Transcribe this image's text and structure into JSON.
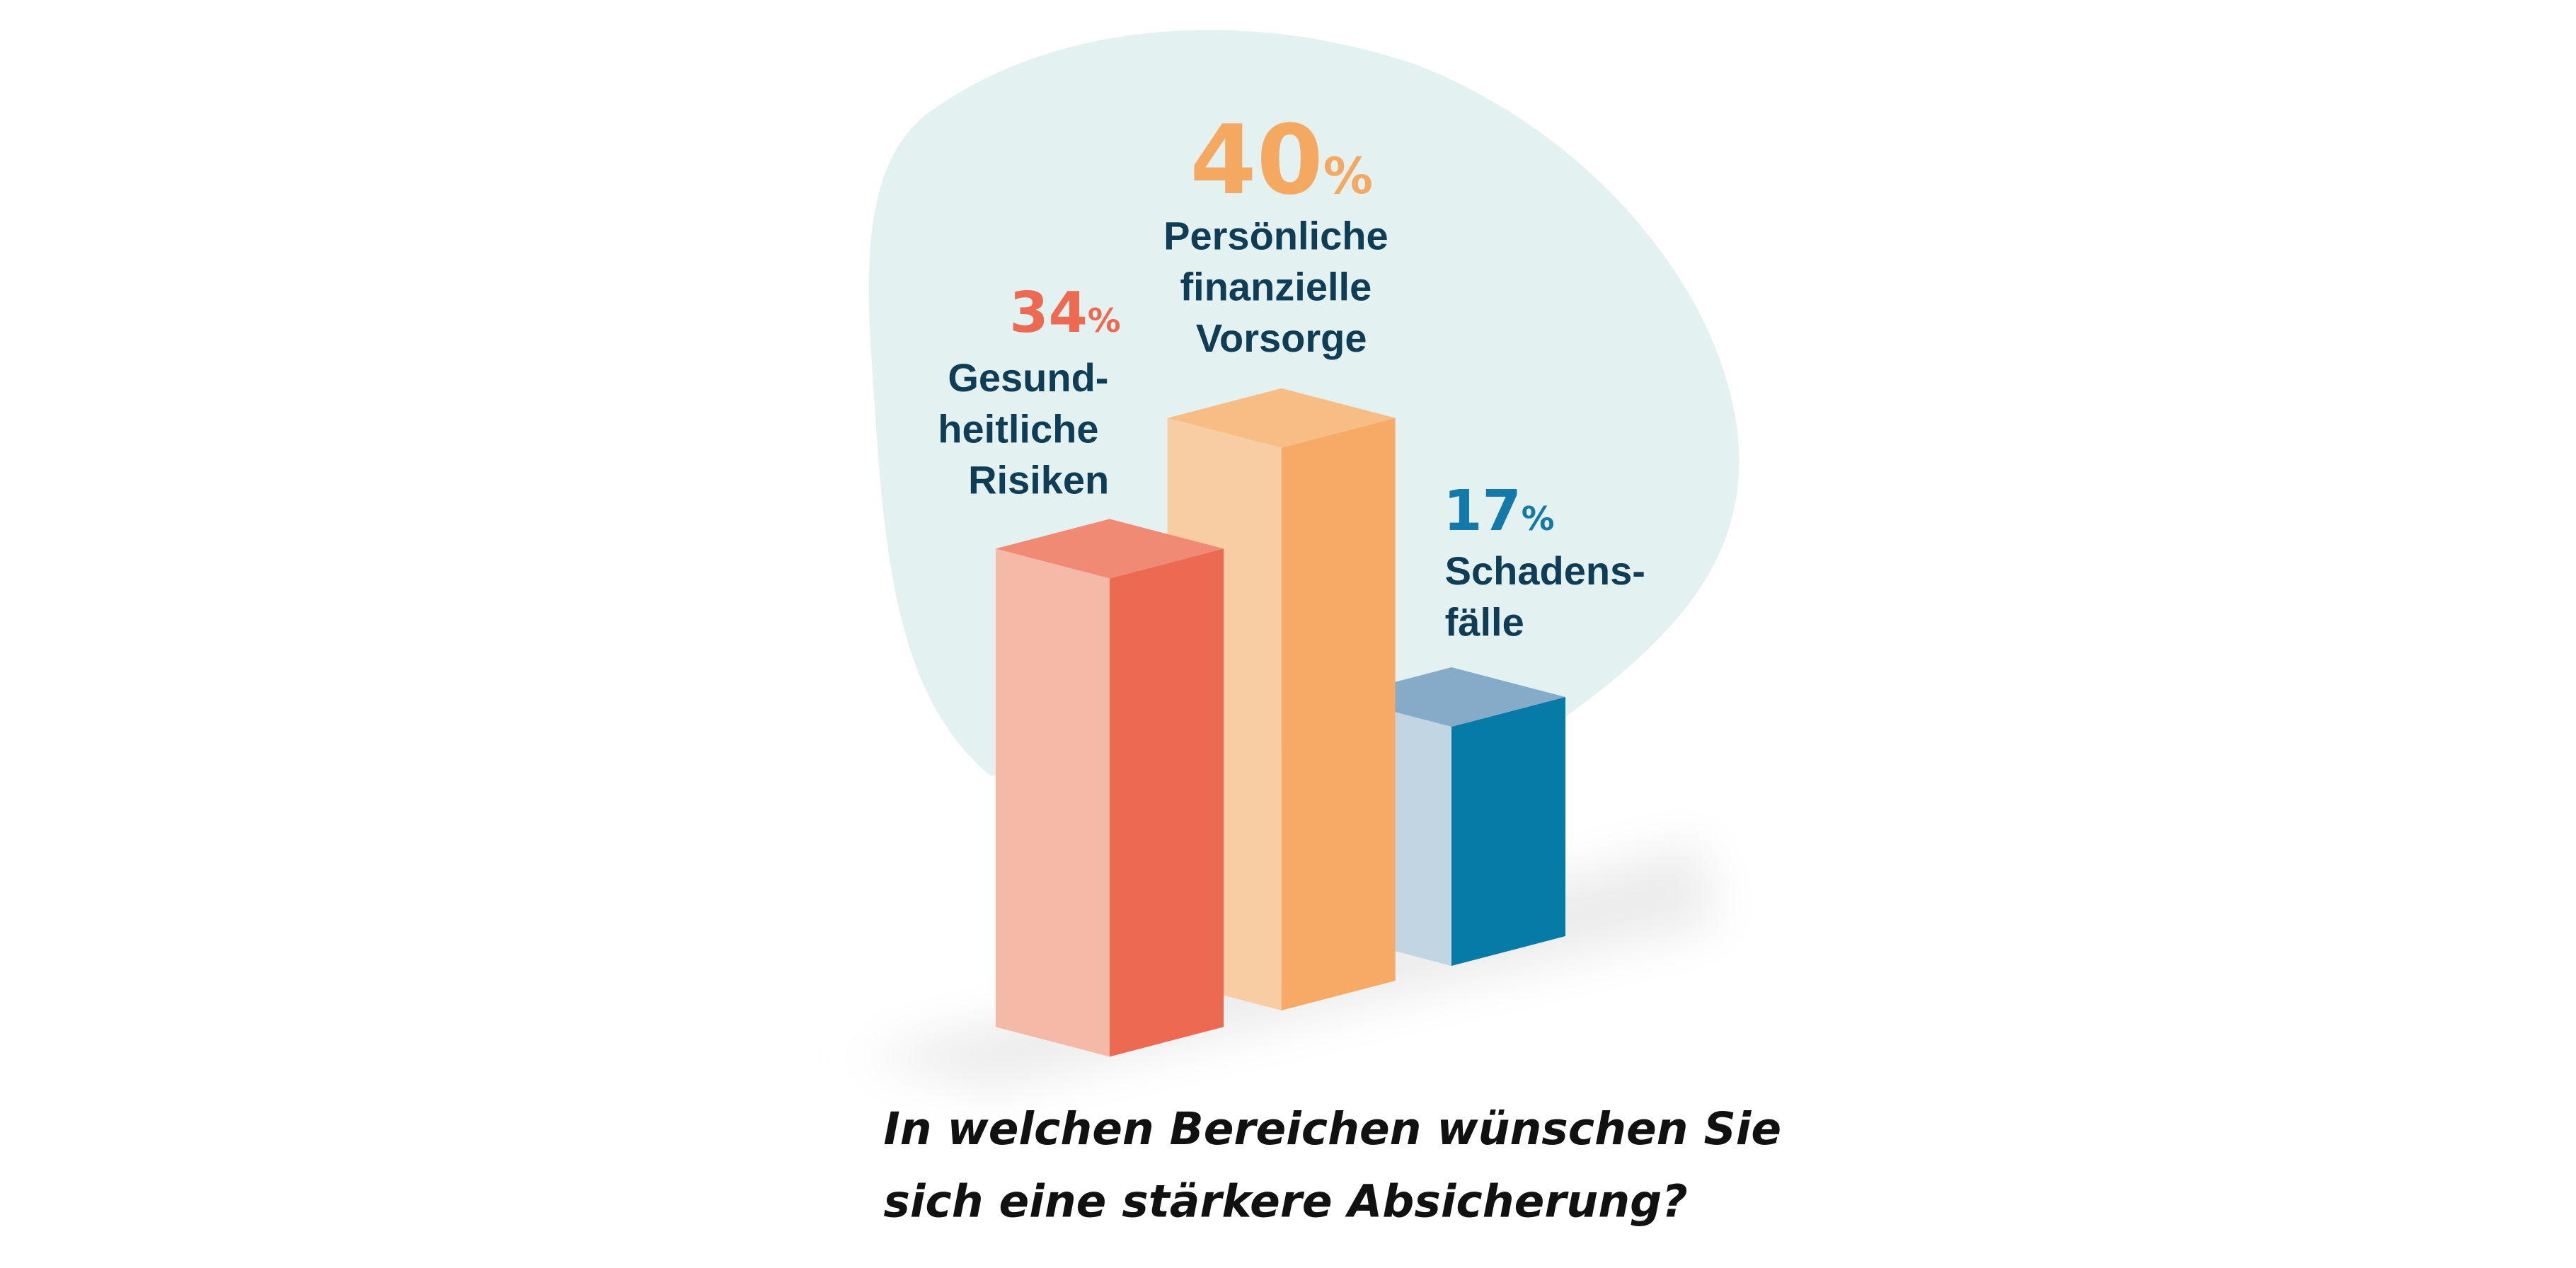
{
  "chart_data": {
    "type": "bar",
    "style": "3d-columns",
    "categories": [
      "Gesundheitliche Risiken",
      "Persönliche finanzielle Vorsorge",
      "Schadensfälle"
    ],
    "values": [
      34,
      40,
      17
    ],
    "unit": "%",
    "label_lines": [
      [
        "Gesund-",
        "heitliche",
        "Risiken"
      ],
      [
        "Persönliche",
        "finanzielle",
        "Vorsorge"
      ],
      [
        "Schadens-",
        "fälle"
      ]
    ],
    "colors": [
      {
        "value": "#ec6a52",
        "left": "#f5b9a7",
        "right": "#ec6a52",
        "top": "#f08a74"
      },
      {
        "value": "#f5a85f",
        "left": "#f9cda3",
        "right": "#f6aa66",
        "top": "#f8bd85"
      },
      {
        "value": "#1279a8",
        "left": "#c2d5e2",
        "right": "#067ba8",
        "top": "#86abc9"
      }
    ],
    "question": [
      "In welchen Bereichen wünschen Sie",
      "sich eine stärkere Absicherung?"
    ],
    "grid": false,
    "legend": "none",
    "background_blob_color": "#e3f1f1"
  }
}
